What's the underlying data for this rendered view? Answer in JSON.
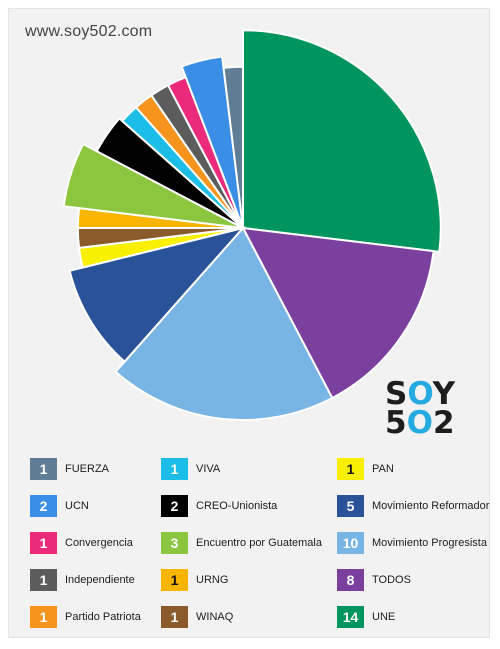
{
  "header": {
    "site_url": "www.soy502.com"
  },
  "logo": {
    "line1_a": "S",
    "line1_b": "O",
    "line1_c": "Y",
    "line2_a": "5",
    "line2_b": "O",
    "line2_c": "2"
  },
  "chart_data": {
    "type": "pie",
    "title": "",
    "slices": [
      {
        "label": "UNE",
        "value": 14,
        "color": "#00945e"
      },
      {
        "label": "TODOS",
        "value": 8,
        "color": "#7b3f9e"
      },
      {
        "label": "Movimiento Progresista",
        "value": 10,
        "color": "#78b4e4"
      },
      {
        "label": "Movimiento Reformador",
        "value": 5,
        "color": "#2a5298"
      },
      {
        "label": "PAN",
        "value": 1,
        "color": "#f8f000"
      },
      {
        "label": "WINAQ",
        "value": 1,
        "color": "#8b5a2b"
      },
      {
        "label": "URNG",
        "value": 1,
        "color": "#f7b500"
      },
      {
        "label": "Encuentro por Guatemala",
        "value": 3,
        "color": "#8cc63f"
      },
      {
        "label": "CREO-Unionista",
        "value": 2,
        "color": "#000000"
      },
      {
        "label": "VIVA",
        "value": 1,
        "color": "#1cbde6"
      },
      {
        "label": "Partido Patriota",
        "value": 1,
        "color": "#f7941d"
      },
      {
        "label": "Independiente",
        "value": 1,
        "color": "#5c5c5c"
      },
      {
        "label": "Convergencia",
        "value": 1,
        "color": "#ec2a7b"
      },
      {
        "label": "UCN",
        "value": 2,
        "color": "#3a8ee6"
      },
      {
        "label": "FUERZA",
        "value": 1,
        "color": "#5f7d95"
      }
    ],
    "start_angle_deg": 0,
    "legend_placement": "bottom"
  },
  "legend": {
    "columns": [
      [
        {
          "value": "1",
          "label": "FUERZA",
          "color": "#5f7d95"
        },
        {
          "value": "2",
          "label": "UCN",
          "color": "#3a8ee6"
        },
        {
          "value": "1",
          "label": "Convergencia",
          "color": "#ec2a7b"
        },
        {
          "value": "1",
          "label": "Independiente",
          "color": "#5c5c5c"
        },
        {
          "value": "1",
          "label": "Partido Patriota",
          "color": "#f7941d"
        }
      ],
      [
        {
          "value": "1",
          "label": "VIVA",
          "color": "#1cbde6"
        },
        {
          "value": "2",
          "label": "CREO-Unionista",
          "color": "#000000"
        },
        {
          "value": "3",
          "label": "Encuentro por Guatemala",
          "color": "#8cc63f"
        },
        {
          "value": "1",
          "label": "URNG",
          "color": "#f7b500"
        },
        {
          "value": "1",
          "label": "WINAQ",
          "color": "#8b5a2b"
        }
      ],
      [
        {
          "value": "1",
          "label": "PAN",
          "color": "#f8f000"
        },
        {
          "value": "5",
          "label": "Movimiento Reformador",
          "color": "#2a5298"
        },
        {
          "value": "10",
          "label": "Movimiento Progresista",
          "color": "#78b4e4"
        },
        {
          "value": "8",
          "label": "TODOS",
          "color": "#7b3f9e"
        },
        {
          "value": "14",
          "label": "UNE",
          "color": "#00945e"
        }
      ]
    ]
  }
}
